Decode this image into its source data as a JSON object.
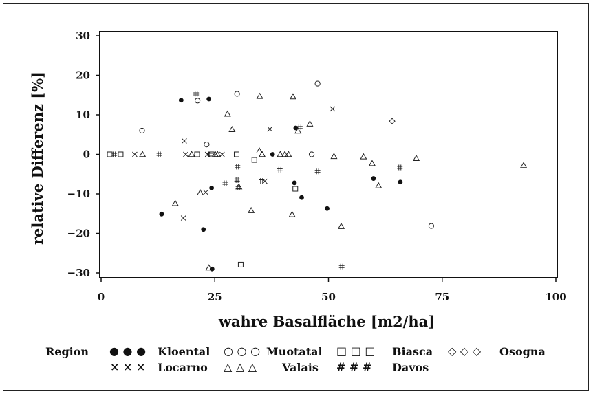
{
  "chart_data": {
    "type": "scatter",
    "title": "",
    "xlabel": "wahre Basalfläche [m2/ha]",
    "ylabel": "relative Differenz [%]",
    "xlim": [
      0,
      100
    ],
    "ylim": [
      -30,
      30
    ],
    "x_ticks": [
      0,
      25,
      50,
      75,
      100
    ],
    "y_ticks": [
      30,
      20,
      10,
      0,
      -10,
      -20,
      -30
    ],
    "grid": false,
    "legend": {
      "title": "Region",
      "placement": "bottom",
      "entries": [
        {
          "name": "Kloental",
          "symbol": "●  ●  ●"
        },
        {
          "name": "Muotatal",
          "symbol": "○  ○  ○"
        },
        {
          "name": "Biasca",
          "symbol": "□  □  □"
        },
        {
          "name": "Osogna",
          "symbol": "◇  ◇  ◇"
        },
        {
          "name": "Locarno",
          "symbol": "×  ×  ×"
        },
        {
          "name": "Valais",
          "symbol": "△  △  △"
        },
        {
          "name": "Davos",
          "symbol": "#  #  #"
        }
      ]
    },
    "series": [
      {
        "name": "Kloental",
        "marker": "filled-circle",
        "points": [
          [
            13.3,
            -15.1
          ],
          [
            17.6,
            13.7
          ],
          [
            22.5,
            -19.0
          ],
          [
            23.7,
            14.0
          ],
          [
            24.3,
            -8.5
          ],
          [
            24.4,
            -29.0
          ],
          [
            37.7,
            0.0
          ],
          [
            42.5,
            -7.2
          ],
          [
            42.8,
            6.7
          ],
          [
            44.1,
            -10.9
          ],
          [
            49.7,
            -13.7
          ],
          [
            59.9,
            -6.1
          ],
          [
            65.8,
            -7.0
          ]
        ]
      },
      {
        "name": "Muotatal",
        "marker": "open-circle",
        "points": [
          [
            9.0,
            6.0
          ],
          [
            21.2,
            13.6
          ],
          [
            23.2,
            2.5
          ],
          [
            29.9,
            15.3
          ],
          [
            46.3,
            0.0
          ],
          [
            47.6,
            17.9
          ],
          [
            72.6,
            -18.1
          ]
        ]
      },
      {
        "name": "Biasca",
        "marker": "open-square",
        "points": [
          [
            1.9,
            0.0
          ],
          [
            4.3,
            0.0
          ],
          [
            21.1,
            0.0
          ],
          [
            24.3,
            0.0
          ],
          [
            29.8,
            0.0
          ],
          [
            33.7,
            -1.4
          ],
          [
            42.7,
            -8.7
          ],
          [
            30.7,
            -27.9
          ]
        ]
      },
      {
        "name": "Osogna",
        "marker": "open-diamond",
        "points": [
          [
            64.0,
            8.4
          ]
        ]
      },
      {
        "name": "Locarno",
        "marker": "cross",
        "points": [
          [
            7.4,
            0.0
          ],
          [
            18.1,
            -16.1
          ],
          [
            18.3,
            3.4
          ],
          [
            18.6,
            0.0
          ],
          [
            23.0,
            -9.6
          ],
          [
            23.4,
            0.0
          ],
          [
            26.6,
            0.0
          ],
          [
            36.0,
            -6.8
          ],
          [
            37.1,
            6.4
          ],
          [
            50.9,
            11.5
          ]
        ]
      },
      {
        "name": "Valais",
        "marker": "open-triangle",
        "points": [
          [
            9.1,
            0.0
          ],
          [
            16.3,
            -12.4
          ],
          [
            19.9,
            0.0
          ],
          [
            21.8,
            -9.7
          ],
          [
            23.7,
            -28.7
          ],
          [
            25.1,
            0.0
          ],
          [
            25.6,
            0.0
          ],
          [
            27.8,
            10.2
          ],
          [
            28.8,
            6.3
          ],
          [
            30.3,
            -8.2
          ],
          [
            33.0,
            -14.2
          ],
          [
            34.8,
            0.9
          ],
          [
            34.9,
            14.7
          ],
          [
            35.4,
            0.0
          ],
          [
            39.4,
            0.0
          ],
          [
            40.4,
            0.0
          ],
          [
            41.2,
            0.0
          ],
          [
            42.0,
            -15.2
          ],
          [
            42.2,
            14.6
          ],
          [
            43.3,
            5.9
          ],
          [
            45.9,
            7.7
          ],
          [
            51.2,
            -0.5
          ],
          [
            52.8,
            -18.2
          ],
          [
            57.7,
            -0.6
          ],
          [
            59.6,
            -2.3
          ],
          [
            61.0,
            -7.9
          ],
          [
            69.3,
            -1.0
          ],
          [
            92.9,
            -2.8
          ]
        ]
      },
      {
        "name": "Davos",
        "marker": "hash",
        "points": [
          [
            2.9,
            0.0
          ],
          [
            12.8,
            0.0
          ],
          [
            20.9,
            15.3
          ],
          [
            23.9,
            0.0
          ],
          [
            27.3,
            -7.3
          ],
          [
            30.0,
            -3.1
          ],
          [
            30.2,
            -8.4
          ],
          [
            29.9,
            -6.5
          ],
          [
            35.3,
            -6.7
          ],
          [
            39.3,
            -3.9
          ],
          [
            43.7,
            6.8
          ],
          [
            47.6,
            -4.3
          ],
          [
            52.9,
            -28.4
          ],
          [
            65.7,
            -3.3
          ]
        ]
      }
    ]
  }
}
